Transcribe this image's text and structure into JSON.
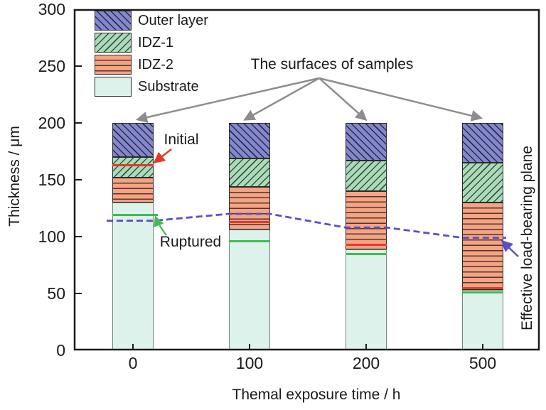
{
  "figure": {
    "ylabel": "Thickness / μm",
    "xlabel": "Themal exposure time / h",
    "annotations": {
      "surfaces": "The surfaces of samples",
      "initial": "Initial",
      "ruptured": "Ruptured",
      "load_bearing": "Effective load-bearing plane"
    }
  },
  "legend": {
    "items": [
      {
        "label": "Outer layer",
        "pattern": "diag-back",
        "fill": "#8487c9"
      },
      {
        "label": "IDZ-1",
        "pattern": "diag-fwd",
        "fill": "#abdbb8"
      },
      {
        "label": "IDZ-2",
        "pattern": "horiz",
        "fill": "#f4a384"
      },
      {
        "label": "Substrate",
        "pattern": "solid",
        "fill": "#def2ec"
      }
    ]
  },
  "chart_data": {
    "type": "bar",
    "stacked": true,
    "title": "",
    "xlabel": "Themal exposure time / h",
    "ylabel": "Thickness / μm",
    "categories": [
      "0",
      "100",
      "200",
      "500"
    ],
    "ylim": [
      0,
      300
    ],
    "yticks": [
      0,
      50,
      100,
      150,
      200,
      250,
      300
    ],
    "bar_total_height_um": 200,
    "series": [
      {
        "name": "Substrate",
        "values": [
          130,
          106,
          89,
          53
        ]
      },
      {
        "name": "IDZ-2",
        "values": [
          22,
          38,
          51,
          77
        ]
      },
      {
        "name": "IDZ-1",
        "values": [
          18,
          25,
          27,
          35
        ]
      },
      {
        "name": "Outer layer",
        "values": [
          30,
          31,
          33,
          35
        ]
      }
    ],
    "marker_lines": {
      "initial_surface_red": [
        163,
        113,
        93,
        55
      ],
      "ruptured_green": [
        119,
        96,
        85,
        51
      ],
      "effective_load_bearing_dashed": [
        114,
        120,
        108,
        99
      ]
    },
    "legend_position": "top-left",
    "grid": false
  },
  "colors": {
    "frame": "#1a1a1a",
    "outer_layer": "#8487c9",
    "idz1": "#abdbb8",
    "idz2": "#f4a384",
    "substrate": "#def2ec",
    "red_line": "#e6392a",
    "green_line": "#3fbd53",
    "dashed_plane": "#5a4fc8",
    "gray_arrow": "#8d8d8d"
  }
}
